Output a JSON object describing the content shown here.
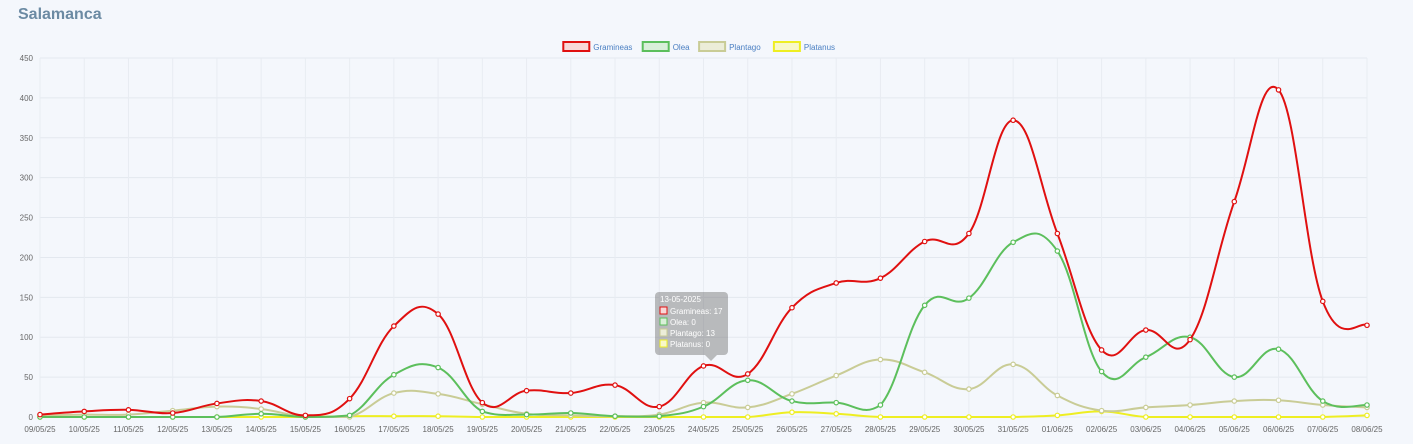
{
  "page": {
    "title": "Salamanca"
  },
  "chart_data": {
    "type": "line",
    "title": "",
    "xlabel": "",
    "ylabel": "",
    "ylim": [
      0,
      450
    ],
    "yticks": [
      0,
      50,
      100,
      150,
      200,
      250,
      300,
      350,
      400,
      450
    ],
    "grid": true,
    "legend_position": "top-center",
    "categories": [
      "09/05/25",
      "10/05/25",
      "11/05/25",
      "12/05/25",
      "13/05/25",
      "14/05/25",
      "15/05/25",
      "16/05/25",
      "17/05/25",
      "18/05/25",
      "19/05/25",
      "20/05/25",
      "21/05/25",
      "22/05/25",
      "23/05/25",
      "24/05/25",
      "25/05/25",
      "26/05/25",
      "27/05/25",
      "28/05/25",
      "29/05/25",
      "30/05/25",
      "31/05/25",
      "01/06/25",
      "02/06/25",
      "03/06/25",
      "04/06/25",
      "05/06/25",
      "06/06/25",
      "07/06/25",
      "08/06/25"
    ],
    "series": [
      {
        "name": "Gramineas",
        "color": "#e01010",
        "fill": "#f8d7d7",
        "values": [
          3,
          7,
          9,
          5,
          17,
          20,
          2,
          23,
          114,
          129,
          18,
          33,
          30,
          40,
          13,
          64,
          54,
          137,
          168,
          174,
          220,
          230,
          372,
          230,
          84,
          109,
          97,
          270,
          410,
          145,
          115
        ]
      },
      {
        "name": "Olea",
        "color": "#5cbf5c",
        "fill": "#d9efd9",
        "values": [
          0,
          0,
          0,
          0,
          0,
          4,
          0,
          2,
          53,
          62,
          7,
          3,
          5,
          1,
          1,
          13,
          46,
          20,
          18,
          15,
          140,
          149,
          219,
          208,
          57,
          75,
          100,
          50,
          85,
          20,
          15
        ]
      },
      {
        "name": "Plantago",
        "color": "#c9cc96",
        "fill": "#ecedd8",
        "values": [
          2,
          3,
          3,
          8,
          13,
          10,
          0,
          0,
          30,
          29,
          16,
          4,
          2,
          1,
          3,
          18,
          12,
          29,
          52,
          72,
          56,
          35,
          66,
          27,
          8,
          12,
          15,
          20,
          21,
          15,
          12
        ]
      },
      {
        "name": "Platanus",
        "color": "#eeee22",
        "fill": "#f8f8c8",
        "values": [
          0,
          0,
          0,
          0,
          0,
          0,
          0,
          1,
          1,
          1,
          0,
          0,
          0,
          0,
          0,
          0,
          0,
          6,
          4,
          0,
          0,
          0,
          0,
          2,
          7,
          0,
          0,
          0,
          0,
          0,
          2
        ]
      }
    ],
    "tooltip": {
      "title": "13-05-2025",
      "lines": [
        "Gramineas: 17",
        "Olea: 0",
        "Plantago: 13",
        "Platanus: 0"
      ]
    }
  }
}
